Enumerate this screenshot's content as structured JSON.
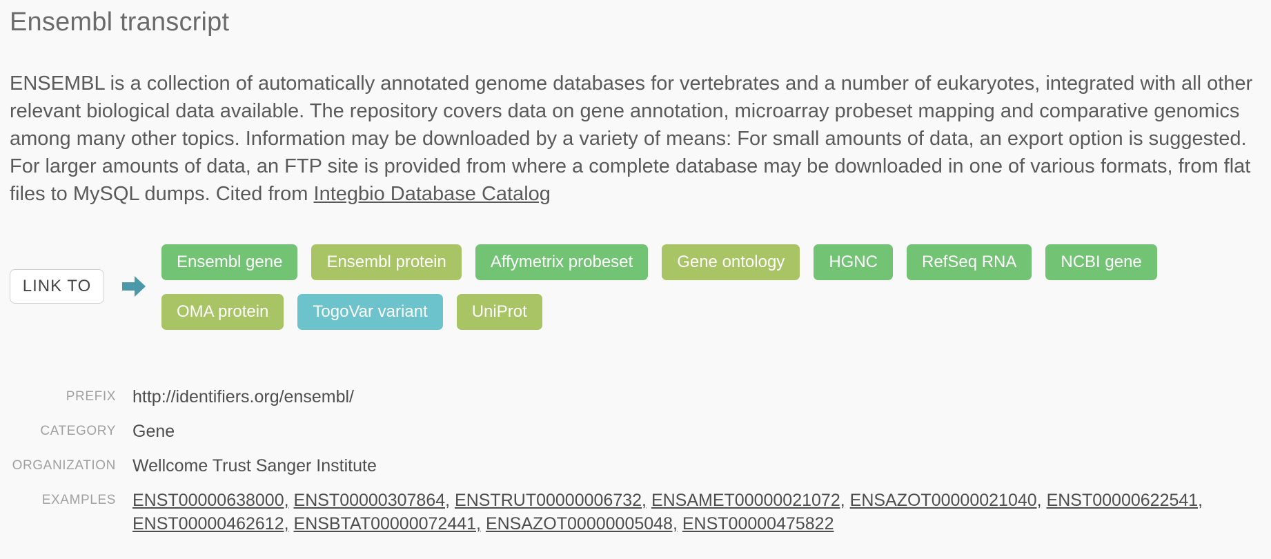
{
  "header": {
    "title": "Ensembl transcript"
  },
  "description": {
    "text": "ENSEMBL is a collection of automatically annotated genome databases for vertebrates and a number of eukaryotes, integrated with all other relevant biological data available. The repository covers data on gene annotation, microarray probeset mapping and comparative genomics among many other topics. Information may be downloaded by a variety of means: For small amounts of data, an export option is suggested. For larger amounts of data, an FTP site is provided from where a complete database may be downloaded in one of various formats, from flat files to MySQL dumps. Cited from ",
    "link_label": "Integbio Database Catalog"
  },
  "link_to": {
    "label": "LINK TO",
    "arrow_icon": "arrow-right-icon",
    "arrow_color": "#4a98a8",
    "tags": [
      {
        "label": "Ensembl gene",
        "color": "#72c474"
      },
      {
        "label": "Ensembl protein",
        "color": "#a9c465"
      },
      {
        "label": "Affymetrix probeset",
        "color": "#72c474"
      },
      {
        "label": "Gene ontology",
        "color": "#a9c465"
      },
      {
        "label": "HGNC",
        "color": "#72c474"
      },
      {
        "label": "RefSeq RNA",
        "color": "#72c474"
      },
      {
        "label": "NCBI gene",
        "color": "#72c474"
      },
      {
        "label": "OMA protein",
        "color": "#a9c465"
      },
      {
        "label": "TogoVar variant",
        "color": "#6cc3cc"
      },
      {
        "label": "UniProt",
        "color": "#a9c465"
      }
    ]
  },
  "meta": {
    "prefix_label": "PREFIX",
    "prefix_value": "http://identifiers.org/ensembl/",
    "category_label": "CATEGORY",
    "category_value": "Gene",
    "organization_label": "ORGANIZATION",
    "organization_value": "Wellcome Trust Sanger Institute",
    "examples_label": "EXAMPLES",
    "examples": [
      "ENST00000638000",
      "ENST00000307864",
      "ENSTRUT00000006732",
      "ENSAMET00000021072",
      "ENSAZOT00000021040",
      "ENST00000622541",
      "ENST00000462612",
      "ENSBTAT00000072441",
      "ENSAZOT00000005048",
      "ENST00000475822"
    ]
  }
}
